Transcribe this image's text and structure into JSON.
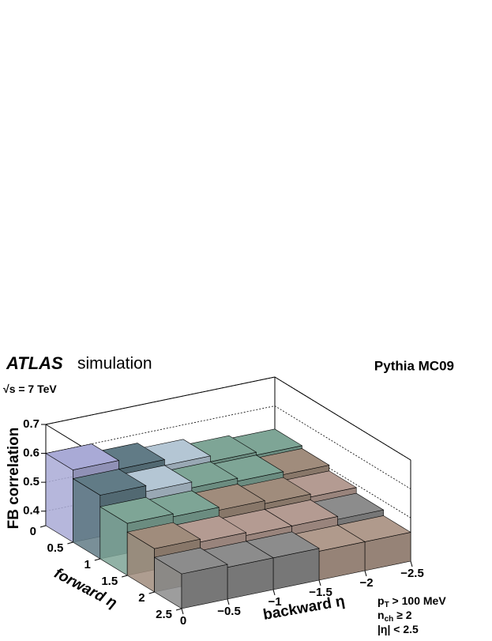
{
  "chart_data": {
    "type": "lego",
    "title": "ATLAS",
    "subtitle": "simulation",
    "generator": "Pythia MC09",
    "energy": {
      "root": "√",
      "text": "s = 7 TeV"
    },
    "cuts": [
      {
        "base": "p",
        "sub": "T",
        "rest": " > 100 MeV"
      },
      {
        "base": "n",
        "sub": "ch",
        "rest": " ≥ 2"
      },
      {
        "base": "|η| < 2.5",
        "sub": "",
        "rest": ""
      }
    ],
    "zlabel": "FB correlation",
    "forward_label": "forward η",
    "backward_label": "backward η",
    "zlim": [
      0.35,
      0.7
    ],
    "zticks": [
      0.4,
      0.5,
      0.6,
      0.7
    ],
    "forward_lim": [
      0,
      2.5
    ],
    "forward_ticks": [
      0,
      0.5,
      1,
      1.5,
      2,
      2.5
    ],
    "backward_lim": [
      0,
      -2.5
    ],
    "backward_ticks": [
      0,
      {
        "value": -0.5,
        "label": "−0.5"
      },
      {
        "value": -1,
        "label": "−1"
      },
      {
        "value": -1.5,
        "label": "−1.5"
      },
      {
        "value": -2,
        "label": "−2"
      },
      {
        "value": -2.5,
        "label": "−2.5"
      }
    ],
    "values": [
      [
        0.6,
        0.57,
        0.55,
        0.53,
        0.52
      ],
      [
        0.57,
        0.55,
        0.53,
        0.52,
        0.51
      ],
      [
        0.53,
        0.52,
        0.51,
        0.5,
        0.49
      ],
      [
        0.5,
        0.49,
        0.48,
        0.48,
        0.47
      ],
      [
        0.47,
        0.46,
        0.46,
        0.45,
        0.45
      ]
    ],
    "color_levels": [
      {
        "min": 0.58,
        "color": "#a9aad6"
      },
      {
        "min": 0.56,
        "color": "#617b86"
      },
      {
        "min": 0.54,
        "color": "#b4c6d4"
      },
      {
        "min": 0.52,
        "color": "#7ea596"
      },
      {
        "min": 0.5,
        "color": "#a08c7c"
      },
      {
        "min": 0.48,
        "color": "#b49b92"
      },
      {
        "min": 0.46,
        "color": "#8c8c8c"
      },
      {
        "min": 0,
        "color": "#b09a8c"
      }
    ]
  }
}
